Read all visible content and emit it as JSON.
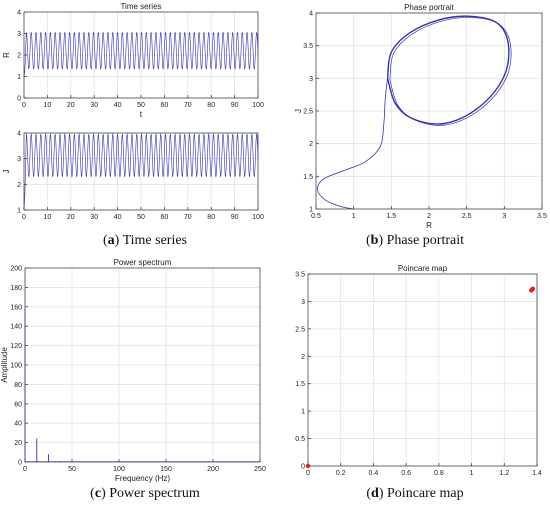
{
  "captions": [
    {
      "letter": "a",
      "text": "Time series"
    },
    {
      "letter": "b",
      "text": "Phase portrait"
    },
    {
      "letter": "c",
      "text": "Power spectrum"
    },
    {
      "letter": "d",
      "text": "Poincare map"
    }
  ],
  "colors": {
    "line": "#3333aa",
    "marker": "#dd2222",
    "axis": "#444444",
    "grid": "#e3e3e3"
  },
  "chart_data": [
    {
      "type": "line",
      "panel": "a-top",
      "title": "Time series",
      "xlabel": "t",
      "ylabel": "R",
      "xlim": [
        0,
        100
      ],
      "ylim": [
        0,
        4
      ],
      "xticks": [
        0,
        10,
        20,
        30,
        40,
        50,
        60,
        70,
        80,
        90,
        100
      ],
      "yticks": [
        0,
        1,
        2,
        3,
        4
      ],
      "grid": true,
      "series": [
        {
          "kind": "oscillation",
          "start": 1.0,
          "min": 1.35,
          "max": 3.05,
          "period": 2.05
        }
      ]
    },
    {
      "type": "line",
      "panel": "a-bottom",
      "title": "",
      "xlabel": "",
      "ylabel": "J",
      "xlim": [
        0,
        100
      ],
      "ylim": [
        1,
        4
      ],
      "xticks": [
        0,
        10,
        20,
        30,
        40,
        50,
        60,
        70,
        80,
        90,
        100
      ],
      "yticks": [
        1,
        2,
        3,
        4
      ],
      "grid": true,
      "series": [
        {
          "kind": "oscillation",
          "start": 1.0,
          "min": 2.3,
          "max": 3.95,
          "period": 2.05
        }
      ]
    },
    {
      "type": "line",
      "panel": "b",
      "title": "Phase portrait",
      "xlabel": "R",
      "ylabel": "J",
      "xlim": [
        0.5,
        3.5
      ],
      "ylim": [
        1,
        4
      ],
      "xticks": [
        0.5,
        1,
        1.5,
        2,
        2.5,
        3,
        3.5
      ],
      "yticks": [
        1,
        1.5,
        2,
        2.5,
        3,
        3.5,
        4
      ],
      "grid": true,
      "transient": [
        [
          1.0,
          1.0
        ],
        [
          0.82,
          1.04
        ],
        [
          0.62,
          1.14
        ],
        [
          0.52,
          1.3
        ],
        [
          0.6,
          1.46
        ],
        [
          0.85,
          1.58
        ],
        [
          1.15,
          1.72
        ],
        [
          1.35,
          1.95
        ],
        [
          1.4,
          2.3
        ],
        [
          1.42,
          2.7
        ],
        [
          1.45,
          3.0
        ]
      ],
      "limit_cycle": [
        [
          1.45,
          3.0
        ],
        [
          1.55,
          2.62
        ],
        [
          1.75,
          2.4
        ],
        [
          2.1,
          2.3
        ],
        [
          2.45,
          2.4
        ],
        [
          2.8,
          2.7
        ],
        [
          3.02,
          3.1
        ],
        [
          3.05,
          3.55
        ],
        [
          2.9,
          3.85
        ],
        [
          2.55,
          3.95
        ],
        [
          2.15,
          3.9
        ],
        [
          1.75,
          3.7
        ],
        [
          1.5,
          3.4
        ],
        [
          1.45,
          3.0
        ]
      ]
    },
    {
      "type": "bar",
      "panel": "c",
      "title": "Power spectrum",
      "xlabel": "Frequency (Hz)",
      "ylabel": "Amplitude",
      "xlim": [
        0,
        250
      ],
      "ylim": [
        0,
        200
      ],
      "xticks": [
        0,
        50,
        100,
        150,
        200,
        250
      ],
      "yticks": [
        0,
        20,
        40,
        60,
        80,
        100,
        120,
        140,
        160,
        180,
        200
      ],
      "grid": true,
      "x": [
        0,
        12.5,
        25,
        37.5
      ],
      "values": [
        158,
        24,
        8,
        1
      ]
    },
    {
      "type": "scatter",
      "panel": "d",
      "title": "Poincare map",
      "xlabel": "",
      "ylabel": "",
      "xlim": [
        0,
        1.4
      ],
      "ylim": [
        0,
        3.5
      ],
      "xticks": [
        0,
        0.2,
        0.4,
        0.6,
        0.8,
        1.0,
        1.2,
        1.4
      ],
      "yticks": [
        0,
        0.5,
        1,
        1.5,
        2,
        2.5,
        3,
        3.5
      ],
      "grid": true,
      "points": [
        [
          0,
          0
        ],
        [
          1.37,
          3.22
        ],
        [
          1.365,
          3.2
        ],
        [
          1.375,
          3.23
        ]
      ]
    }
  ]
}
